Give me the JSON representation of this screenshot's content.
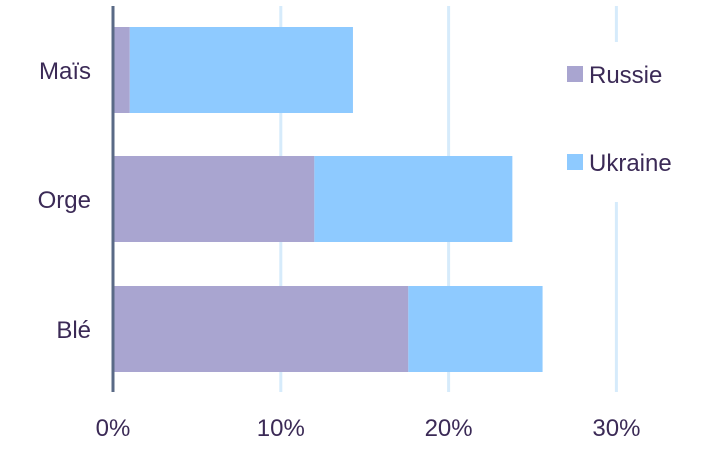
{
  "chart_data": {
    "type": "bar",
    "orientation": "horizontal",
    "stacked": true,
    "categories": [
      "Maïs",
      "Orge",
      "Blé"
    ],
    "series": [
      {
        "name": "Russie",
        "values": [
          1.0,
          12.0,
          17.6
        ],
        "color": "#a9a5d0"
      },
      {
        "name": "Ukraine",
        "values": [
          13.3,
          11.8,
          8.0
        ],
        "color": "#8ecaff"
      }
    ],
    "xlim": [
      0,
      35
    ],
    "xticks": [
      0,
      10,
      20,
      30
    ],
    "tick_labels": [
      "0%",
      "10%",
      "20%",
      "30%"
    ],
    "grid": true,
    "legend": {
      "position": "top-right"
    },
    "title": "",
    "xlabel": "",
    "ylabel": "",
    "colors": {
      "grid": "#d6ebfb",
      "axis": "#5a6a86",
      "text": "#3b2a56"
    }
  }
}
